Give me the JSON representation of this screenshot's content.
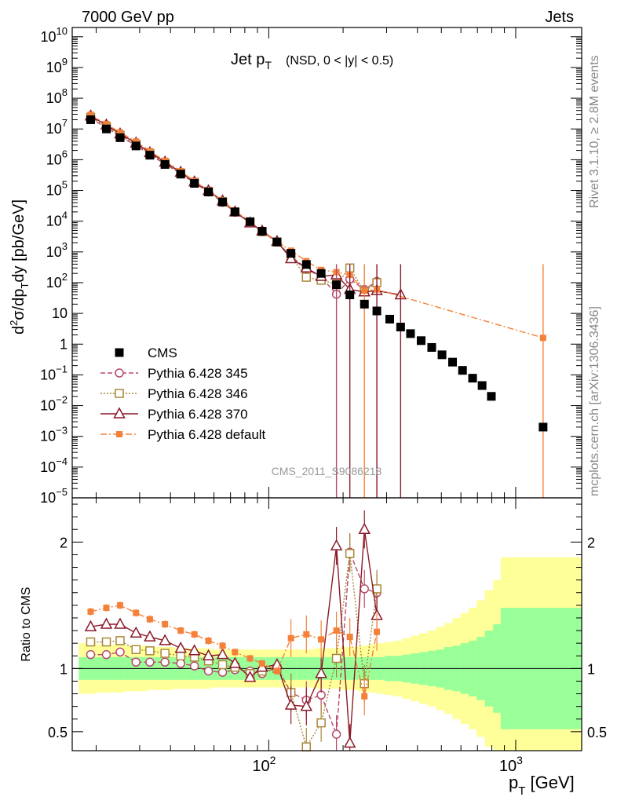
{
  "header": {
    "left": "7000 GeV pp",
    "right": "Jets"
  },
  "side_labels": {
    "rivet": "Rivet 3.1.10, ≥ 2.8M events",
    "mcplots": "mcplots.cern.ch [arXiv:1306.3436]"
  },
  "watermark": "CMS_2011_S9086218",
  "plot_title": {
    "main": "Jet p",
    "sub": "T",
    "extra": "(NSD,   0 < |y| < 0.5)"
  },
  "ylabel_main": "d²σ/dp_T dy [pb/GeV]",
  "ylabel_ratio": "Ratio to CMS",
  "xlabel": "p_T [GeV]",
  "legend": [
    {
      "label": "CMS",
      "color": "#000000",
      "marker": "square"
    },
    {
      "label": "Pythia 6.428 345",
      "color": "#b84a6b",
      "marker": "circle",
      "dash": "6,3"
    },
    {
      "label": "Pythia 6.428 346",
      "color": "#a8873a",
      "marker": "open-square",
      "dash": "2,2"
    },
    {
      "label": "Pythia 6.428 370",
      "color": "#8b1a2a",
      "marker": "triangle",
      "dash": ""
    },
    {
      "label": "Pythia 6.428 default",
      "color": "#f4813a",
      "marker": "filled-square",
      "dash": "8,3,2,3"
    }
  ],
  "colors": {
    "band_inner": "#99ff99",
    "band_outer": "#ffff99"
  },
  "chart_data": [
    {
      "type": "scatter",
      "title": "Jet pT (NSD, 0 < |y| < 0.5)",
      "xscale": "log",
      "yscale": "log",
      "xlim": [
        16,
        1850
      ],
      "ylim": [
        1e-05,
        20000000000
      ],
      "yticks": [
        {
          "v": 10000000000.0,
          "m": "10",
          "e": "10"
        },
        {
          "v": 1000000000.0,
          "m": "10",
          "e": "9"
        },
        {
          "v": 100000000.0,
          "m": "10",
          "e": "8"
        },
        {
          "v": 10000000.0,
          "m": "10",
          "e": "7"
        },
        {
          "v": 1000000.0,
          "m": "10",
          "e": "6"
        },
        {
          "v": 100000.0,
          "m": "10",
          "e": "5"
        },
        {
          "v": 10000.0,
          "m": "10",
          "e": "4"
        },
        {
          "v": 1000.0,
          "m": "10",
          "e": "3"
        },
        {
          "v": 100,
          "m": "10",
          "e": "2"
        },
        {
          "v": 10,
          "m": "10",
          "e": ""
        },
        {
          "v": 1,
          "m": "1",
          "e": ""
        },
        {
          "v": 0.1,
          "m": "10",
          "e": "−1"
        },
        {
          "v": 0.01,
          "m": "10",
          "e": "−2"
        },
        {
          "v": 0.001,
          "m": "10",
          "e": "−3"
        },
        {
          "v": 0.0001,
          "m": "10",
          "e": "−4"
        },
        {
          "v": 1e-05,
          "m": "10",
          "e": "−5"
        }
      ],
      "xticks": [
        {
          "v": 100,
          "m": "10",
          "e": "2"
        },
        {
          "v": 1000,
          "m": "10",
          "e": "3"
        }
      ],
      "cms": {
        "x": [
          19,
          22,
          25,
          29,
          33,
          38,
          44,
          50,
          57,
          65,
          73,
          84,
          94,
          108,
          123,
          142,
          163,
          188,
          213,
          244,
          274,
          309,
          342,
          375,
          414,
          457,
          503,
          555,
          609,
          669,
          731,
          797,
          1291
        ],
        "y": [
          20000000.0,
          10000000.0,
          5200000.0,
          2800000.0,
          1400000.0,
          700000.0,
          340000.0,
          170000.0,
          89000.0,
          42000.0,
          20000.0,
          9600.0,
          4700.0,
          2100.0,
          900,
          390,
          200,
          85,
          40,
          20,
          12,
          6.5,
          3.6,
          2.2,
          1.3,
          0.78,
          0.45,
          0.26,
          0.14,
          0.078,
          0.045,
          0.02,
          0.002
        ]
      },
      "series": [
        {
          "name": "Pythia 6.428 345",
          "x": [
            19,
            22,
            25,
            29,
            33,
            38,
            44,
            50,
            57,
            65,
            73,
            84,
            94,
            108,
            123,
            142,
            163,
            188,
            213,
            244,
            274
          ],
          "y": [
            22000000.0,
            11000000.0,
            5700000.0,
            2900000.0,
            1450000.0,
            730000.0,
            350000.0,
            175000.0,
            89000.0,
            41000.0,
            19500.0,
            9400.0,
            4500.0,
            2100.0,
            730,
            290,
            150,
            42,
            130,
            60,
            110
          ]
        },
        {
          "name": "Pythia 6.428 346",
          "x": [
            19,
            22,
            25,
            29,
            33,
            38,
            44,
            50,
            57,
            65,
            73,
            84,
            94,
            108,
            123,
            142,
            163,
            188,
            213,
            244,
            274
          ],
          "y": [
            24000000.0,
            12000000.0,
            6200000.0,
            3200000.0,
            1600000.0,
            790000.0,
            370000.0,
            185000.0,
            94000.0,
            43000.0,
            20000.0,
            9200.0,
            4600.0,
            2100.0,
            720,
            150,
            120,
            90,
            300,
            52,
            100
          ]
        },
        {
          "name": "Pythia 6.428 370",
          "x": [
            19,
            22,
            25,
            29,
            33,
            38,
            44,
            50,
            57,
            65,
            73,
            84,
            94,
            108,
            123,
            142,
            163,
            188,
            213,
            244,
            274,
            342
          ],
          "y": [
            26500000.0,
            13500000.0,
            6900000.0,
            3500000.0,
            1700000.0,
            840000.0,
            390000.0,
            190000.0,
            98000.0,
            46000.0,
            20000.0,
            8800.0,
            4800.0,
            2200.0,
            600,
            300,
            160,
            180,
            60,
            50,
            55,
            40
          ]
        },
        {
          "name": "Pythia 6.428 default",
          "x": [
            19,
            22,
            25,
            29,
            33,
            38,
            44,
            50,
            57,
            65,
            73,
            84,
            94,
            108,
            123,
            142,
            163,
            188,
            213,
            244,
            274,
            1291
          ],
          "y": [
            29000000.0,
            14500000.0,
            7700000.0,
            3900000.0,
            1900000.0,
            920000.0,
            420000.0,
            200000.0,
            98000.0,
            47000.0,
            21000.0,
            10000.0,
            4800.0,
            2100.0,
            1100.0,
            500,
            260,
            220,
            180,
            55,
            60,
            1.6
          ]
        }
      ]
    },
    {
      "type": "line",
      "ylabel": "Ratio to CMS",
      "xscale": "log",
      "xlim": [
        16,
        1850
      ],
      "ylim": [
        0.35,
        2.35
      ],
      "yticks": [
        {
          "v": 0.5,
          "label": "0.5"
        },
        {
          "v": 1,
          "label": "1"
        },
        {
          "v": 2,
          "label": "2"
        }
      ],
      "band_edges": [
        17,
        20,
        23,
        26,
        29,
        32,
        36,
        41,
        46,
        52,
        58,
        65,
        72,
        80,
        88,
        97,
        107,
        118,
        129,
        140,
        152,
        165,
        180,
        195,
        212,
        230,
        250,
        272,
        295,
        320,
        347,
        376,
        407,
        440,
        476,
        514,
        555,
        598,
        645,
        695,
        750,
        810,
        870,
        1000,
        1850
      ],
      "band_inner_hw": [
        0.09,
        0.09,
        0.09,
        0.09,
        0.09,
        0.09,
        0.09,
        0.09,
        0.09,
        0.09,
        0.09,
        0.09,
        0.09,
        0.09,
        0.09,
        0.09,
        0.09,
        0.09,
        0.09,
        0.09,
        0.09,
        0.09,
        0.09,
        0.09,
        0.09,
        0.09,
        0.09,
        0.09,
        0.1,
        0.1,
        0.11,
        0.12,
        0.13,
        0.14,
        0.15,
        0.17,
        0.18,
        0.2,
        0.22,
        0.25,
        0.3,
        0.35,
        0.48,
        0.48
      ],
      "band_outer_hw": [
        0.2,
        0.19,
        0.19,
        0.18,
        0.18,
        0.17,
        0.17,
        0.16,
        0.16,
        0.16,
        0.15,
        0.15,
        0.15,
        0.15,
        0.15,
        0.15,
        0.15,
        0.15,
        0.15,
        0.15,
        0.16,
        0.16,
        0.16,
        0.17,
        0.17,
        0.18,
        0.19,
        0.2,
        0.21,
        0.22,
        0.24,
        0.26,
        0.28,
        0.3,
        0.33,
        0.36,
        0.4,
        0.44,
        0.48,
        0.54,
        0.62,
        0.7,
        0.88,
        0.88
      ],
      "series": [
        {
          "name": "Pythia 6.428 345",
          "x": [
            19,
            22,
            25,
            29,
            33,
            38,
            44,
            50,
            57,
            65,
            73,
            84,
            94,
            108,
            123,
            142,
            163,
            188,
            213,
            244,
            274
          ],
          "y": [
            1.11,
            1.11,
            1.13,
            1.05,
            1.05,
            1.05,
            1.04,
            1.02,
            0.98,
            0.97,
            0.99,
            0.98,
            0.96,
            1.01,
            0.81,
            0.75,
            0.79,
            0.48,
            1.92,
            1.63,
            1.6
          ]
        },
        {
          "name": "Pythia 6.428 346",
          "x": [
            19,
            22,
            25,
            29,
            33,
            38,
            44,
            50,
            57,
            65,
            73,
            84,
            94,
            108,
            123,
            142,
            163,
            188,
            213,
            244,
            274
          ],
          "y": [
            1.21,
            1.21,
            1.22,
            1.15,
            1.14,
            1.12,
            1.1,
            1.09,
            1.06,
            1.03,
            1.01,
            0.96,
            0.98,
            1.0,
            0.81,
            0.38,
            0.57,
            1.08,
            1.91,
            0.88,
            1.63
          ]
        },
        {
          "name": "Pythia 6.428 370",
          "x": [
            19,
            22,
            25,
            29,
            33,
            38,
            44,
            50,
            57,
            65,
            73,
            84,
            94,
            108,
            123,
            142,
            163,
            188,
            213,
            244,
            274
          ],
          "y": [
            1.33,
            1.35,
            1.35,
            1.28,
            1.25,
            1.22,
            1.16,
            1.14,
            1.1,
            1.11,
            1.04,
            0.93,
            1.01,
            1.03,
            0.71,
            0.7,
            0.96,
            1.97,
            0.41,
            2.1,
            1.42
          ]
        },
        {
          "name": "Pythia 6.428 default",
          "x": [
            19,
            22,
            25,
            29,
            33,
            38,
            44,
            50,
            57,
            65,
            73,
            84,
            94,
            108,
            123,
            142,
            163,
            188,
            213,
            244,
            274
          ],
          "y": [
            1.45,
            1.48,
            1.5,
            1.44,
            1.39,
            1.35,
            1.3,
            1.27,
            1.22,
            1.18,
            1.13,
            1.08,
            1.04,
            0.98,
            1.24,
            1.27,
            1.23,
            1.3,
            1.25,
            0.78,
            1.29
          ]
        }
      ]
    }
  ]
}
